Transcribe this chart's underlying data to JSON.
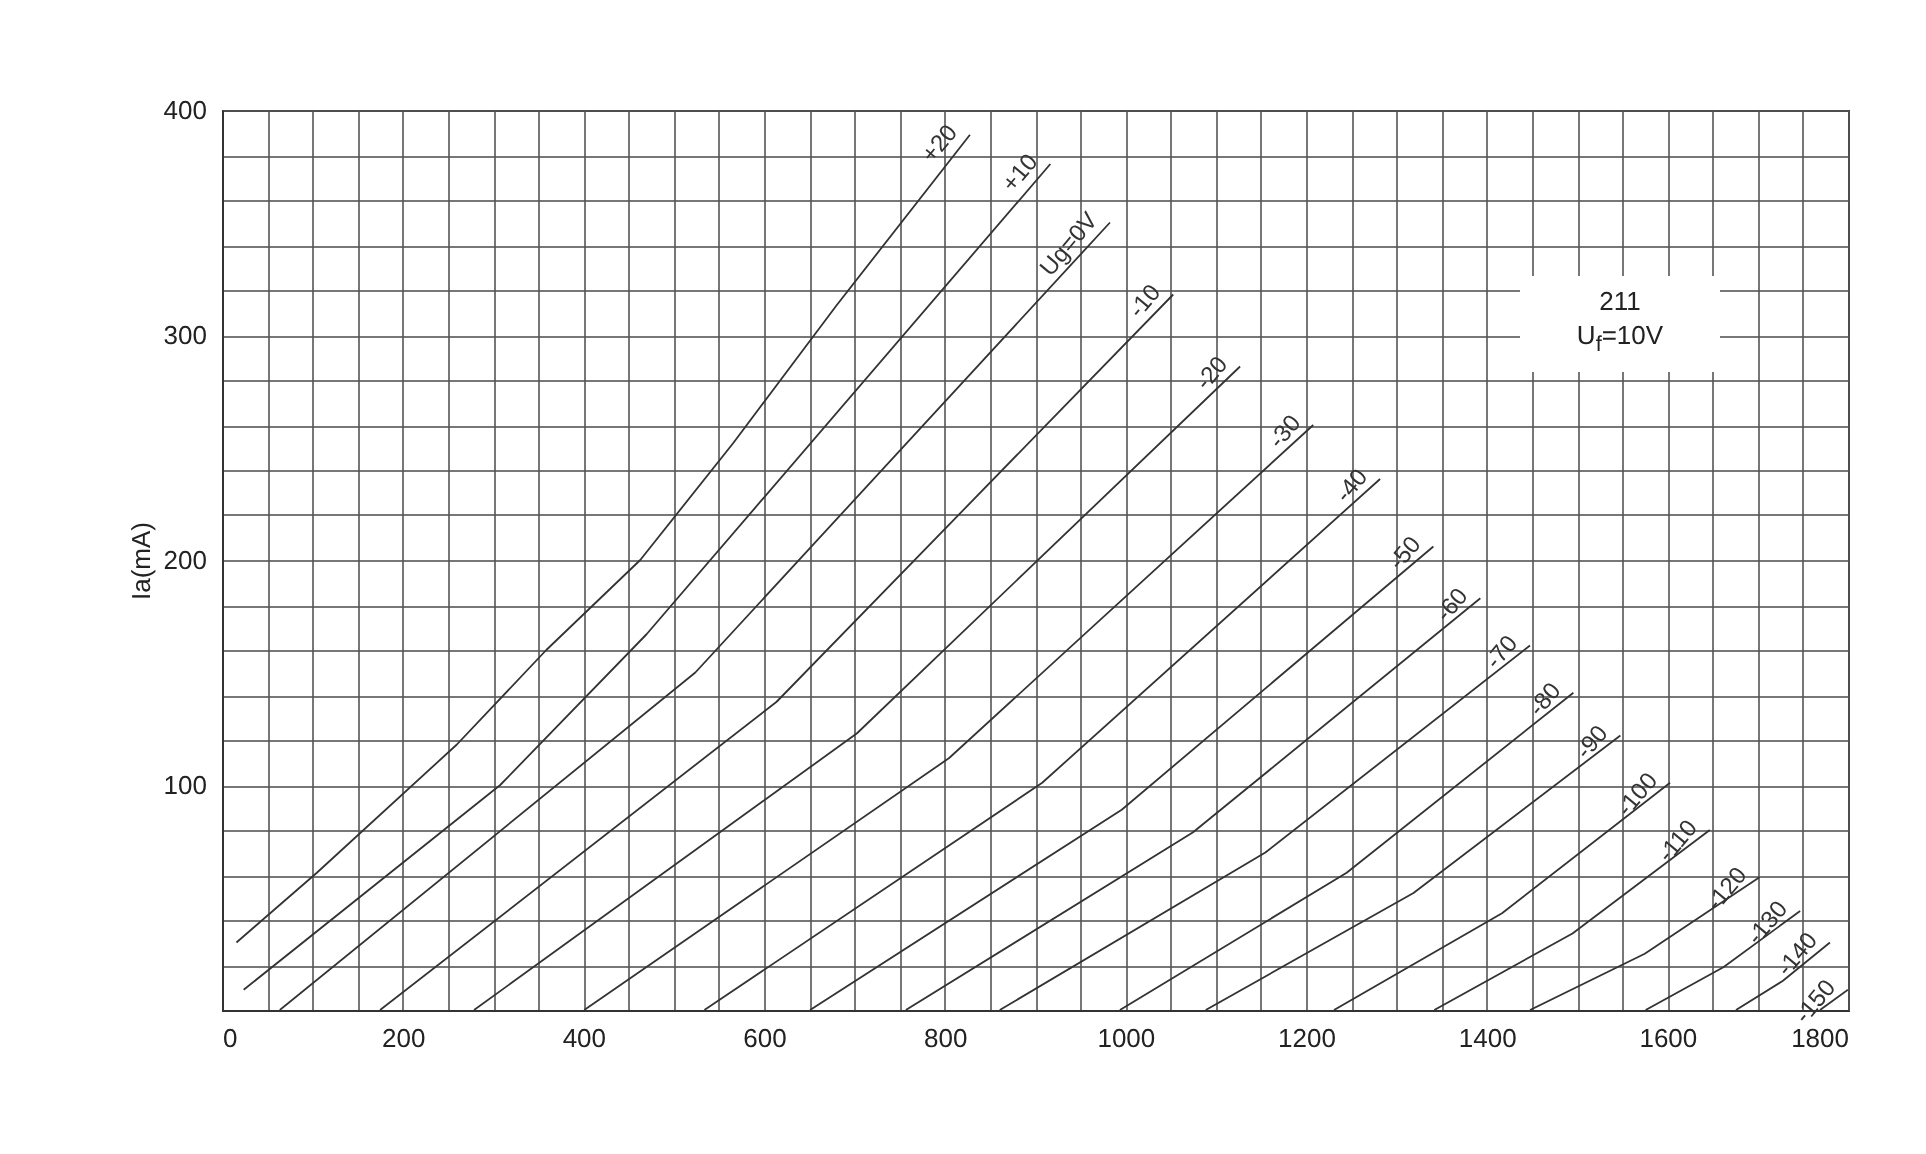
{
  "chart_data": {
    "type": "line",
    "ylabel": "Ia(mA)",
    "annotations": [
      "211",
      "U$_{f}$=10V"
    ],
    "xlim": [
      0,
      1800
    ],
    "ylim": [
      0,
      400
    ],
    "xticks": [
      0,
      {
        "value": 50,
        "label": null
      },
      {
        "value": 100,
        "label": null
      },
      {
        "value": 150,
        "label": null
      },
      200,
      {
        "value": 250,
        "label": null
      },
      {
        "value": 300,
        "label": null
      },
      {
        "value": 350,
        "label": null
      },
      400,
      {
        "value": 450,
        "label": null
      },
      {
        "value": 500,
        "label": null
      },
      {
        "value": 550,
        "label": null
      },
      600,
      {
        "value": 650,
        "label": null
      },
      {
        "value": 700,
        "label": null
      },
      {
        "value": 750,
        "label": null
      },
      800,
      {
        "value": 850,
        "label": null
      },
      {
        "value": 900,
        "label": null
      },
      {
        "value": 950,
        "label": null
      },
      1000,
      {
        "value": 1050,
        "label": null
      },
      {
        "value": 1100,
        "label": null
      },
      {
        "value": 1150,
        "label": null
      },
      1200,
      {
        "value": 1250,
        "label": null
      },
      {
        "value": 1300,
        "label": null
      },
      {
        "value": 1350,
        "label": null
      },
      1400,
      {
        "value": 1450,
        "label": null
      },
      {
        "value": 1500,
        "label": null
      },
      {
        "value": 1550,
        "label": null
      },
      1600,
      {
        "value": 1650,
        "label": null
      },
      {
        "value": 1700,
        "label": null
      },
      {
        "value": 1750,
        "label": null
      },
      1800
    ],
    "yticks": [
      {
        "value": 0,
        "label": null
      },
      {
        "value": 20,
        "label": null
      },
      {
        "value": 40,
        "label": null
      },
      {
        "value": 60,
        "label": null
      },
      {
        "value": 80,
        "label": null
      },
      100,
      {
        "value": 120,
        "label": null
      },
      {
        "value": 140,
        "label": null
      },
      {
        "value": 160,
        "label": null
      },
      {
        "value": 180,
        "label": null
      },
      200,
      {
        "value": 220,
        "label": null
      },
      {
        "value": 240,
        "label": null
      },
      {
        "value": 260,
        "label": null
      },
      {
        "value": 280,
        "label": null
      },
      300,
      {
        "value": 320,
        "label": null
      },
      {
        "value": 340,
        "label": null
      },
      {
        "value": 360,
        "label": null
      },
      {
        "value": 380,
        "label": null
      },
      400
    ],
    "grid": true,
    "series": [
      {
        "name": "+20",
        "color": "#333333",
        "x": [
          16,
          105,
          260,
          359,
          463,
          566,
          680,
          828
        ],
        "values": [
          30,
          61,
          118,
          160,
          200,
          252,
          313,
          389
        ]
      },
      {
        "name": "+10",
        "color": "#333333",
        "x": [
          24,
          308,
          470,
          917
        ],
        "values": [
          9,
          100,
          167,
          376
        ]
      },
      {
        "name": "Ug=0V",
        "color": "#333333",
        "x": [
          64,
          524,
          983
        ],
        "values": [
          0,
          150,
          350
        ]
      },
      {
        "name": "-10",
        "color": "#333333",
        "x": [
          175,
          614,
          1053
        ],
        "values": [
          0,
          137,
          318
        ]
      },
      {
        "name": "-20",
        "color": "#333333",
        "x": [
          279,
          703,
          1127
        ],
        "values": [
          0,
          123,
          286
        ]
      },
      {
        "name": "-30",
        "color": "#333333",
        "x": [
          401,
          805,
          1208
        ],
        "values": [
          0,
          112,
          260
        ]
      },
      {
        "name": "-40",
        "color": "#333333",
        "x": [
          534,
          908,
          1282
        ],
        "values": [
          0,
          101,
          236
        ]
      },
      {
        "name": "-50",
        "color": "#333333",
        "x": [
          651,
          996,
          1341
        ],
        "values": [
          0,
          89,
          206
        ]
      },
      {
        "name": "-60",
        "color": "#333333",
        "x": [
          757,
          1075,
          1393
        ],
        "values": [
          0,
          79,
          183
        ]
      },
      {
        "name": "-70",
        "color": "#333333",
        "x": [
          861,
          1155,
          1448
        ],
        "values": [
          0,
          70,
          162
        ]
      },
      {
        "name": "-80",
        "color": "#333333",
        "x": [
          994,
          1245,
          1496
        ],
        "values": [
          0,
          61,
          141
        ]
      },
      {
        "name": "-90",
        "color": "#333333",
        "x": [
          1089,
          1319,
          1548
        ],
        "values": [
          0,
          52,
          122
        ]
      },
      {
        "name": "-100",
        "color": "#333333",
        "x": [
          1231,
          1417,
          1603
        ],
        "values": [
          0,
          43,
          101
        ]
      },
      {
        "name": "-110",
        "color": "#333333",
        "x": [
          1342,
          1495,
          1647
        ],
        "values": [
          0,
          34,
          80
        ]
      },
      {
        "name": "-120",
        "color": "#333333",
        "x": [
          1448,
          1575,
          1702
        ],
        "values": [
          0,
          25,
          59
        ]
      },
      {
        "name": "-130",
        "color": "#333333",
        "x": [
          1576,
          1662,
          1747
        ],
        "values": [
          0,
          19,
          44
        ]
      },
      {
        "name": "-140",
        "color": "#333333",
        "x": [
          1676,
          1728,
          1780
        ],
        "values": [
          0,
          13,
          30
        ]
      },
      {
        "name": "-150",
        "color": "#333333",
        "x": [
          1769,
          1800
        ],
        "values": [
          0,
          9
        ]
      }
    ]
  }
}
